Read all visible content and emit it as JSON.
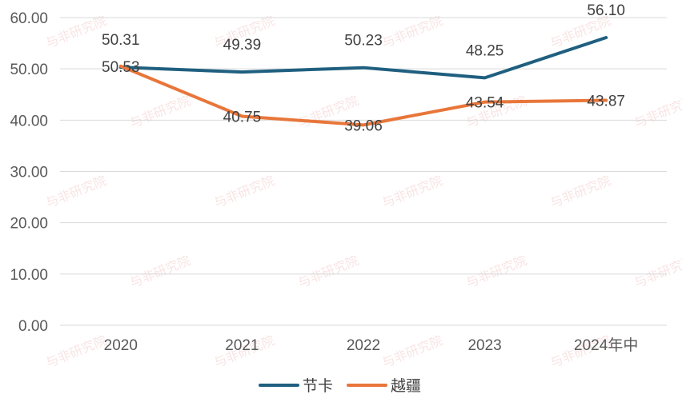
{
  "chart_data": {
    "type": "line",
    "categories": [
      "2020",
      "2021",
      "2022",
      "2023",
      "2024年中"
    ],
    "series": [
      {
        "name": "节卡",
        "values": [
          50.31,
          49.39,
          50.23,
          48.25,
          56.1
        ],
        "color": "#1f5f7f",
        "labels": [
          "50.31",
          "49.39",
          "50.23",
          "48.25",
          "56.10"
        ]
      },
      {
        "name": "越疆",
        "values": [
          50.53,
          40.75,
          39.06,
          43.54,
          43.87
        ],
        "color": "#e8763a",
        "labels": [
          "50.53",
          "40.75",
          "39.06",
          "43.54",
          "43.87"
        ]
      }
    ],
    "ylim": [
      0,
      60
    ],
    "yticks": [
      "0.00",
      "10.00",
      "20.00",
      "30.00",
      "40.00",
      "50.00",
      "60.00"
    ],
    "grid": true,
    "legend_position": "bottom",
    "watermark": "与非研究院"
  }
}
